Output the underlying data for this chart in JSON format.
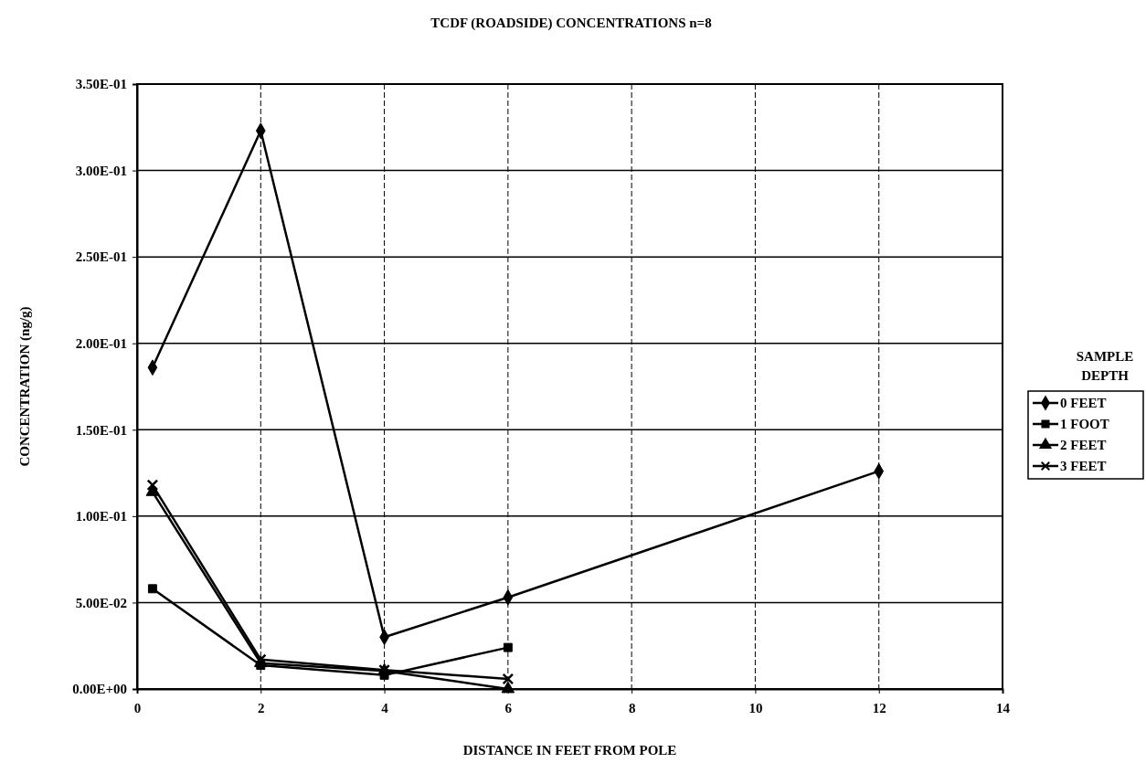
{
  "chart_data": {
    "type": "line",
    "title": "TCDF (ROADSIDE) CONCENTRATIONS    n=8",
    "xlabel": "DISTANCE IN FEET FROM POLE",
    "ylabel": "CONCENTRATION (ng/g)",
    "legend_title": "SAMPLE DEPTH",
    "legend": "right",
    "grid": true,
    "line_style": "solid",
    "xlim": [
      0,
      14
    ],
    "xticks": [
      0,
      2,
      4,
      6,
      8,
      10,
      12,
      14
    ],
    "ylim": [
      0,
      0.35
    ],
    "yticks": [
      {
        "value": 0,
        "label": "0.00E+00"
      },
      {
        "value": 0.05,
        "label": "5.00E-02"
      },
      {
        "value": 0.1,
        "label": "1.00E-01"
      },
      {
        "value": 0.15,
        "label": "1.50E-01"
      },
      {
        "value": 0.2,
        "label": "2.00E-01"
      },
      {
        "value": 0.25,
        "label": "2.50E-01"
      },
      {
        "value": 0.3,
        "label": "3.00E-01"
      },
      {
        "value": 0.35,
        "label": "3.50E-01"
      }
    ],
    "series": [
      {
        "name": "0 FEET",
        "color": "#000000",
        "marker": "diamond",
        "x": [
          0.25,
          2,
          4,
          6,
          12
        ],
        "values": [
          0.186,
          0.323,
          0.03,
          0.053,
          0.126
        ]
      },
      {
        "name": "1 FOOT",
        "color": "#000000",
        "marker": "square",
        "x": [
          0.25,
          2,
          4,
          6
        ],
        "values": [
          0.058,
          0.0137,
          0.008,
          0.024
        ]
      },
      {
        "name": "2 FEET",
        "color": "#000000",
        "marker": "triangle",
        "x": [
          0.25,
          2,
          4,
          6
        ],
        "values": [
          0.114,
          0.015,
          0.0105,
          0.0
        ]
      },
      {
        "name": "3 FEET",
        "color": "#000000",
        "marker": "cross",
        "x": [
          0.25,
          2,
          4,
          6
        ],
        "values": [
          0.118,
          0.017,
          0.011,
          0.0058
        ]
      }
    ]
  }
}
